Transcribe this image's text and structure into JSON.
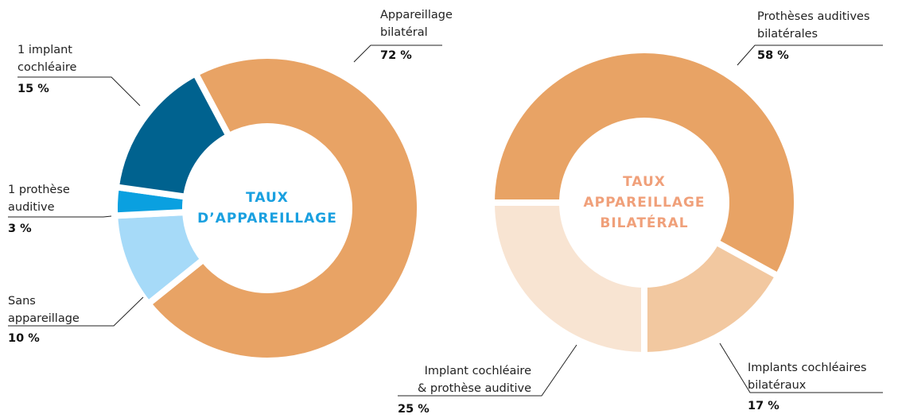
{
  "chart_data": [
    {
      "type": "pie",
      "title": "TAUX\nD’APPAREILLAGE",
      "title_color": "#1aa0e0",
      "categories": [
        "Appareillage\nbilatéral",
        "Sans\nappareillage",
        "1 prothèse\nauditive",
        "1 implant\ncochléaire"
      ],
      "values": [
        72,
        10,
        3,
        15
      ],
      "value_labels": [
        "72 %",
        "10 %",
        "3 %",
        "15 %"
      ],
      "colors": [
        "#e8a365",
        "#a6daf8",
        "#0aa0e0",
        "#00628f"
      ]
    },
    {
      "type": "pie",
      "title": "TAUX\nAPPAREILLAGE\nBILATÉRAL",
      "title_color": "#f0a07a",
      "categories": [
        "Prothèses auditives\nbilatérales",
        "Implants cochléaires\nbilatéraux",
        "Implant cochléaire\n& prothèse auditive"
      ],
      "values": [
        58,
        17,
        25
      ],
      "value_labels": [
        "58 %",
        "17 %",
        "25 %"
      ],
      "colors": [
        "#e8a365",
        "#f2c8a0",
        "#f8e4d2"
      ]
    }
  ]
}
